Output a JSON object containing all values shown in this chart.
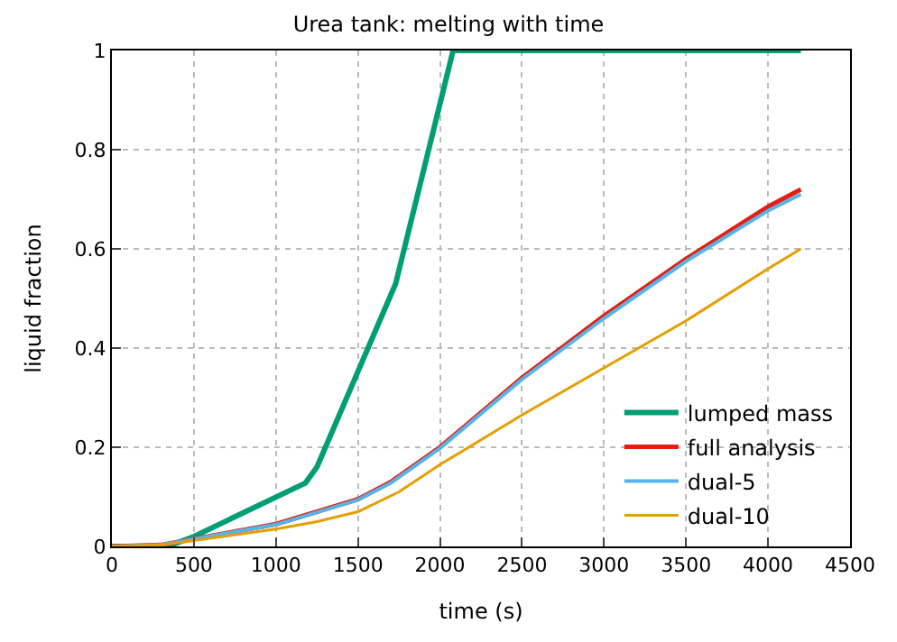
{
  "chart_data": {
    "type": "line",
    "title": "Urea tank: melting with time",
    "xlabel": "time (s)",
    "ylabel": "liquid fraction",
    "xlim": [
      0,
      4500
    ],
    "ylim": [
      0,
      1
    ],
    "xticks": [
      0,
      500,
      1000,
      1500,
      2000,
      2500,
      3000,
      3500,
      4000,
      4500
    ],
    "yticks": [
      0,
      0.2,
      0.4,
      0.6,
      0.8,
      1
    ],
    "grid": true,
    "legend": "bottom right",
    "line_style": "solid",
    "marker": "none",
    "series": [
      {
        "name": "lumped mass",
        "color": "#009e73",
        "x": [
          0,
          340,
          500,
          1180,
          1250,
          1730,
          2080,
          4200
        ],
        "values": [
          0,
          0,
          0.02,
          0.128,
          0.16,
          0.53,
          1,
          1
        ]
      },
      {
        "name": "full analysis",
        "color": "#e51e10",
        "x": [
          0,
          300,
          500,
          1000,
          1200,
          1500,
          1700,
          2000,
          2500,
          3000,
          3500,
          4000,
          4200
        ],
        "values": [
          0,
          0.003,
          0.015,
          0.045,
          0.065,
          0.095,
          0.13,
          0.2,
          0.34,
          0.465,
          0.58,
          0.685,
          0.72
        ]
      },
      {
        "name": "dual-5",
        "color": "#56b4e9",
        "x": [
          0,
          300,
          500,
          1000,
          1200,
          1500,
          1700,
          2000,
          2500,
          3000,
          3500,
          4000,
          4200
        ],
        "values": [
          0,
          0.003,
          0.015,
          0.044,
          0.064,
          0.094,
          0.128,
          0.198,
          0.337,
          0.46,
          0.575,
          0.677,
          0.71
        ]
      },
      {
        "name": "dual-10",
        "color": "#e69f00",
        "x": [
          0,
          300,
          500,
          1000,
          1250,
          1500,
          1750,
          2000,
          2500,
          3000,
          3500,
          4000,
          4200
        ],
        "values": [
          0,
          0.003,
          0.012,
          0.035,
          0.05,
          0.07,
          0.11,
          0.165,
          0.265,
          0.36,
          0.455,
          0.56,
          0.6
        ]
      }
    ]
  }
}
